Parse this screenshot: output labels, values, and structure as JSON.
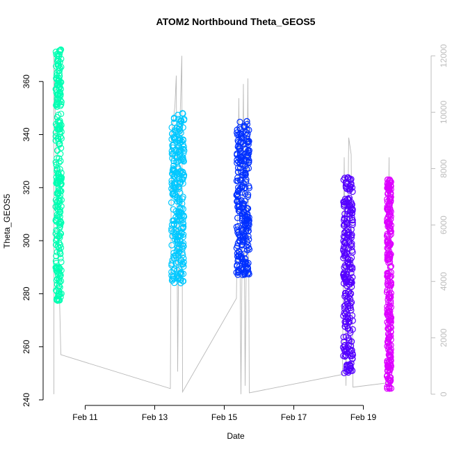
{
  "chart_data": {
    "type": "scatter",
    "title": "ATOM2 Northbound Theta_GEOS5",
    "xlabel": "Date",
    "ylabel": "Theta_GEOS5",
    "x_ticks": [
      "Feb 11",
      "Feb 13",
      "Feb 15",
      "Feb 17",
      "Feb 19"
    ],
    "x_tick_days": [
      11,
      13,
      15,
      17,
      19
    ],
    "xlim_days": [
      9.95,
      20.95
    ],
    "ylim": [
      240,
      375
    ],
    "y_ticks": [
      240,
      260,
      280,
      300,
      320,
      340,
      360
    ],
    "y2_ticks": [
      0,
      2000,
      4000,
      6000,
      8000,
      10000,
      12000
    ],
    "y2lim": [
      -200,
      12500
    ],
    "y2_color": "#bdbdbd",
    "altitude_line_color": "#b8b8b8",
    "grid": false,
    "series": [
      {
        "color": "#00ffb2",
        "day_range": [
          10.15,
          10.32
        ],
        "y_min": 277,
        "y_max": 372,
        "points": [
          [
            10.17,
            300
          ],
          [
            10.2,
            334
          ],
          [
            10.22,
            345
          ],
          [
            10.24,
            290
          ],
          [
            10.27,
            358
          ],
          [
            10.3,
            372
          ],
          [
            10.18,
            278
          ],
          [
            10.25,
            283
          ]
        ]
      },
      {
        "color": "#00c8ff",
        "day_range": [
          13.48,
          13.85
        ],
        "y_min": 284,
        "y_max": 348,
        "points": [
          [
            13.5,
            285
          ],
          [
            13.55,
            330
          ],
          [
            13.6,
            320
          ],
          [
            13.65,
            300
          ],
          [
            13.7,
            338
          ],
          [
            13.76,
            345
          ],
          [
            13.82,
            298
          ],
          [
            13.8,
            348
          ]
        ]
      },
      {
        "color": "#0030ff",
        "day_range": [
          15.35,
          15.72
        ],
        "y_min": 287,
        "y_max": 345,
        "points": [
          [
            15.38,
            315
          ],
          [
            15.42,
            340
          ],
          [
            15.5,
            330
          ],
          [
            15.55,
            300
          ],
          [
            15.6,
            320
          ],
          [
            15.65,
            345
          ],
          [
            15.7,
            288
          ],
          [
            15.68,
            337
          ]
        ]
      },
      {
        "color": "#5500ff",
        "day_range": [
          18.42,
          18.7
        ],
        "y_min": 250,
        "y_max": 324,
        "points": [
          [
            18.45,
            286
          ],
          [
            18.5,
            322
          ],
          [
            18.55,
            310
          ],
          [
            18.6,
            290
          ],
          [
            18.62,
            323
          ],
          [
            18.66,
            262
          ],
          [
            18.68,
            251
          ],
          [
            18.64,
            280
          ]
        ]
      },
      {
        "color": "#dd00ff",
        "day_range": [
          19.68,
          19.8
        ],
        "y_min": 244,
        "y_max": 323,
        "points": [
          [
            19.7,
            323
          ],
          [
            19.72,
            300
          ],
          [
            19.74,
            280
          ],
          [
            19.73,
            260
          ],
          [
            19.71,
            248
          ],
          [
            19.75,
            320
          ]
        ]
      }
    ],
    "altitude_trace": {
      "comment_free": true,
      "path": [
        [
          10.1,
          0
        ],
        [
          10.1,
          12000
        ],
        [
          10.3,
          1400
        ],
        [
          13.45,
          200
        ],
        [
          13.48,
          9200
        ],
        [
          13.58,
          10200
        ],
        [
          13.62,
          11300
        ],
        [
          13.66,
          800
        ],
        [
          13.72,
          9400
        ],
        [
          13.78,
          12000
        ],
        [
          13.8,
          80
        ],
        [
          15.35,
          3400
        ],
        [
          15.42,
          10500
        ],
        [
          15.48,
          0
        ],
        [
          15.55,
          11000
        ],
        [
          15.6,
          300
        ],
        [
          15.68,
          11200
        ],
        [
          15.72,
          50
        ],
        [
          18.4,
          700
        ],
        [
          18.45,
          8400
        ],
        [
          18.5,
          300
        ],
        [
          18.58,
          9100
        ],
        [
          18.65,
          8500
        ],
        [
          18.7,
          250
        ],
        [
          19.68,
          400
        ],
        [
          19.74,
          8400
        ],
        [
          19.77,
          1100
        ]
      ]
    }
  }
}
